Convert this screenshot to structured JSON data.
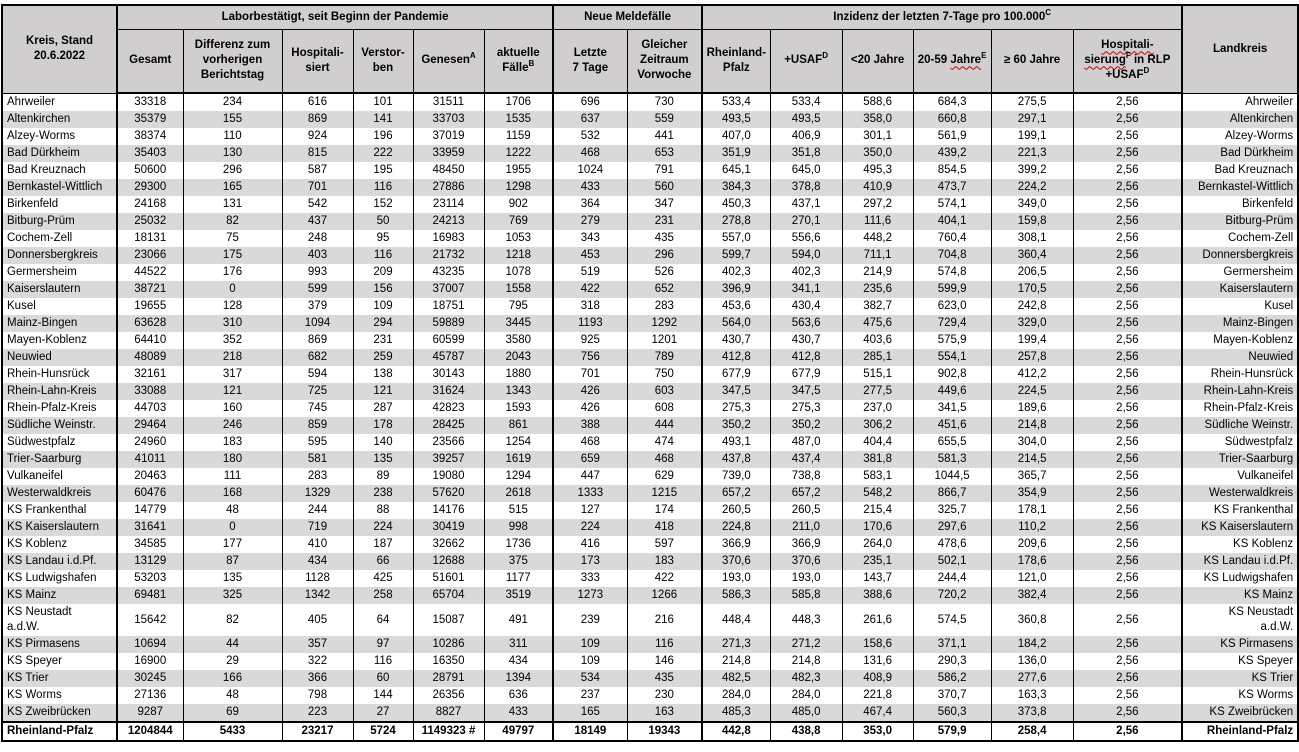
{
  "header": {
    "kreis_stand": [
      "Kreis, Stand",
      "20.6.2022"
    ],
    "groups": {
      "labor": "Laborbestätigt, seit Beginn der Pandemie",
      "meldefaelle": "Neue Meldefälle",
      "inzidenz": {
        "text": "Inzidenz der letzten 7-Tage pro 100.000",
        "sup": "C"
      }
    },
    "cols": {
      "gesamt": "Gesamt",
      "differenz": [
        "Differenz zum",
        "vorherigen",
        "Berichtstag"
      ],
      "hospitalisiert": [
        "Hospitali-",
        "siert"
      ],
      "verstorben": [
        "Verstor-",
        "ben"
      ],
      "genesen": {
        "text": "Genesen",
        "sup": "A"
      },
      "aktuelle_faelle": {
        "lines": [
          "aktuelle",
          "Fälle"
        ],
        "sup": "B"
      },
      "letzte_7_tage": [
        "Letzte",
        "7 Tage"
      ],
      "vorwoche": [
        "Gleicher",
        "Zeitraum",
        "Vorwoche"
      ],
      "rheinland_pfalz": [
        "Rheinland-",
        "Pfalz"
      ],
      "usaf": {
        "text": "+USAF",
        "sup": "D"
      },
      "unter_20": "<20 Jahre",
      "jahre_20_59": {
        "pre": "20-59 ",
        "word": "Jahre",
        "sup": "E"
      },
      "ab_60": "≥ 60 Jahre",
      "hospitalisierung": {
        "line1": "Hospitali-",
        "line2_word": "sierung",
        "line2_sup": "F",
        "line2_rest": " in RLP",
        "line3_text": "+USAF",
        "line3_sup": "D"
      },
      "landkreis": "Landkreis"
    }
  },
  "table": {
    "col_names": [
      "kreis",
      "gesamt",
      "differenz-vortag",
      "hospitalisiert",
      "verstorben",
      "genesen",
      "aktuelle-faelle",
      "letzte-7-tage",
      "vorwoche",
      "inzidenz-rheinland-pfalz",
      "inzidenz-usaf",
      "inzidenz-unter-20",
      "inzidenz-20-59",
      "inzidenz-ab-60",
      "hospitalisierung-rlp-usaf",
      "landkreis"
    ],
    "rows": [
      {
        "kreis": "Ahrweiler",
        "values": [
          "33318",
          "234",
          "616",
          "101",
          "31511",
          "1706",
          "696",
          "730",
          "533,4",
          "533,4",
          "588,6",
          "684,3",
          "275,5",
          "2,56"
        ],
        "landkreis": "Ahrweiler"
      },
      {
        "kreis": "Altenkirchen",
        "values": [
          "35379",
          "155",
          "869",
          "141",
          "33703",
          "1535",
          "637",
          "559",
          "493,5",
          "493,5",
          "358,0",
          "660,8",
          "297,1",
          "2,56"
        ],
        "landkreis": "Altenkirchen"
      },
      {
        "kreis": "Alzey-Worms",
        "values": [
          "38374",
          "110",
          "924",
          "196",
          "37019",
          "1159",
          "532",
          "441",
          "407,0",
          "406,9",
          "301,1",
          "561,9",
          "199,1",
          "2,56"
        ],
        "landkreis": "Alzey-Worms"
      },
      {
        "kreis": "Bad Dürkheim",
        "values": [
          "35403",
          "130",
          "815",
          "222",
          "33959",
          "1222",
          "468",
          "653",
          "351,9",
          "351,8",
          "350,0",
          "439,2",
          "221,3",
          "2,56"
        ],
        "landkreis": "Bad Dürkheim"
      },
      {
        "kreis": "Bad Kreuznach",
        "values": [
          "50600",
          "296",
          "587",
          "195",
          "48450",
          "1955",
          "1024",
          "791",
          "645,1",
          "645,0",
          "495,3",
          "854,5",
          "399,2",
          "2,56"
        ],
        "landkreis": "Bad Kreuznach"
      },
      {
        "kreis": "Bernkastel-Wittlich",
        "values": [
          "29300",
          "165",
          "701",
          "116",
          "27886",
          "1298",
          "433",
          "560",
          "384,3",
          "378,8",
          "410,9",
          "473,7",
          "224,2",
          "2,56"
        ],
        "landkreis": "Bernkastel-Wittlich"
      },
      {
        "kreis": "Birkenfeld",
        "values": [
          "24168",
          "131",
          "542",
          "152",
          "23114",
          "902",
          "364",
          "347",
          "450,3",
          "437,1",
          "297,2",
          "574,1",
          "349,0",
          "2,56"
        ],
        "landkreis": "Birkenfeld"
      },
      {
        "kreis": "Bitburg-Prüm",
        "values": [
          "25032",
          "82",
          "437",
          "50",
          "24213",
          "769",
          "279",
          "231",
          "278,8",
          "270,1",
          "111,6",
          "404,1",
          "159,8",
          "2,56"
        ],
        "landkreis": "Bitburg-Prüm"
      },
      {
        "kreis": "Cochem-Zell",
        "values": [
          "18131",
          "75",
          "248",
          "95",
          "16983",
          "1053",
          "343",
          "435",
          "557,0",
          "556,6",
          "448,2",
          "760,4",
          "308,1",
          "2,56"
        ],
        "landkreis": "Cochem-Zell"
      },
      {
        "kreis": "Donnersbergkreis",
        "values": [
          "23066",
          "175",
          "403",
          "116",
          "21732",
          "1218",
          "453",
          "296",
          "599,7",
          "594,0",
          "711,1",
          "704,8",
          "360,4",
          "2,56"
        ],
        "landkreis": "Donnersbergkreis"
      },
      {
        "kreis": "Germersheim",
        "values": [
          "44522",
          "176",
          "993",
          "209",
          "43235",
          "1078",
          "519",
          "526",
          "402,3",
          "402,3",
          "214,9",
          "574,8",
          "206,5",
          "2,56"
        ],
        "landkreis": "Germersheim"
      },
      {
        "kreis": "Kaiserslautern",
        "values": [
          "38721",
          "0",
          "599",
          "156",
          "37007",
          "1558",
          "422",
          "652",
          "396,9",
          "341,1",
          "235,6",
          "599,9",
          "170,5",
          "2,56"
        ],
        "landkreis": "Kaiserslautern"
      },
      {
        "kreis": "Kusel",
        "values": [
          "19655",
          "128",
          "379",
          "109",
          "18751",
          "795",
          "318",
          "283",
          "453,6",
          "430,4",
          "382,7",
          "623,0",
          "242,8",
          "2,56"
        ],
        "landkreis": "Kusel"
      },
      {
        "kreis": "Mainz-Bingen",
        "values": [
          "63628",
          "310",
          "1094",
          "294",
          "59889",
          "3445",
          "1193",
          "1292",
          "564,0",
          "563,6",
          "475,6",
          "729,4",
          "329,0",
          "2,56"
        ],
        "landkreis": "Mainz-Bingen"
      },
      {
        "kreis": "Mayen-Koblenz",
        "values": [
          "64410",
          "352",
          "869",
          "231",
          "60599",
          "3580",
          "925",
          "1201",
          "430,7",
          "430,7",
          "403,6",
          "575,9",
          "199,4",
          "2,56"
        ],
        "landkreis": "Mayen-Koblenz"
      },
      {
        "kreis": "Neuwied",
        "values": [
          "48089",
          "218",
          "682",
          "259",
          "45787",
          "2043",
          "756",
          "789",
          "412,8",
          "412,8",
          "285,1",
          "554,1",
          "257,8",
          "2,56"
        ],
        "landkreis": "Neuwied"
      },
      {
        "kreis": "Rhein-Hunsrück",
        "values": [
          "32161",
          "317",
          "594",
          "138",
          "30143",
          "1880",
          "701",
          "750",
          "677,9",
          "677,9",
          "515,1",
          "902,8",
          "412,2",
          "2,56"
        ],
        "landkreis": "Rhein-Hunsrück"
      },
      {
        "kreis": "Rhein-Lahn-Kreis",
        "values": [
          "33088",
          "121",
          "725",
          "121",
          "31624",
          "1343",
          "426",
          "603",
          "347,5",
          "347,5",
          "277,5",
          "449,6",
          "224,5",
          "2,56"
        ],
        "landkreis": "Rhein-Lahn-Kreis"
      },
      {
        "kreis": "Rhein-Pfalz-Kreis",
        "values": [
          "44703",
          "160",
          "745",
          "287",
          "42823",
          "1593",
          "426",
          "608",
          "275,3",
          "275,3",
          "237,0",
          "341,5",
          "189,6",
          "2,56"
        ],
        "landkreis": "Rhein-Pfalz-Kreis"
      },
      {
        "kreis": "Südliche Weinstr.",
        "values": [
          "29464",
          "246",
          "859",
          "178",
          "28425",
          "861",
          "388",
          "444",
          "350,2",
          "350,2",
          "306,2",
          "451,6",
          "214,8",
          "2,56"
        ],
        "landkreis": "Südliche Weinstr."
      },
      {
        "kreis": "Südwestpfalz",
        "values": [
          "24960",
          "183",
          "595",
          "140",
          "23566",
          "1254",
          "468",
          "474",
          "493,1",
          "487,0",
          "404,4",
          "655,5",
          "304,0",
          "2,56"
        ],
        "landkreis": "Südwestpfalz"
      },
      {
        "kreis": "Trier-Saarburg",
        "values": [
          "41011",
          "180",
          "581",
          "135",
          "39257",
          "1619",
          "659",
          "468",
          "437,8",
          "437,4",
          "381,8",
          "581,3",
          "214,5",
          "2,56"
        ],
        "landkreis": "Trier-Saarburg"
      },
      {
        "kreis": "Vulkaneifel",
        "values": [
          "20463",
          "111",
          "283",
          "89",
          "19080",
          "1294",
          "447",
          "629",
          "739,0",
          "738,8",
          "583,1",
          "1044,5",
          "365,7",
          "2,56"
        ],
        "landkreis": "Vulkaneifel"
      },
      {
        "kreis": "Westerwaldkreis",
        "values": [
          "60476",
          "168",
          "1329",
          "238",
          "57620",
          "2618",
          "1333",
          "1215",
          "657,2",
          "657,2",
          "548,2",
          "866,7",
          "354,9",
          "2,56"
        ],
        "landkreis": "Westerwaldkreis"
      },
      {
        "kreis": "KS Frankenthal",
        "values": [
          "14779",
          "48",
          "244",
          "88",
          "14176",
          "515",
          "127",
          "174",
          "260,5",
          "260,5",
          "215,4",
          "325,7",
          "178,1",
          "2,56"
        ],
        "landkreis": "KS Frankenthal"
      },
      {
        "kreis": "KS Kaiserslautern",
        "values": [
          "31641",
          "0",
          "719",
          "224",
          "30419",
          "998",
          "224",
          "418",
          "224,8",
          "211,0",
          "170,6",
          "297,6",
          "110,2",
          "2,56"
        ],
        "landkreis": "KS Kaiserslautern"
      },
      {
        "kreis": "KS Koblenz",
        "values": [
          "34585",
          "177",
          "410",
          "187",
          "32662",
          "1736",
          "416",
          "597",
          "366,9",
          "366,9",
          "264,0",
          "478,6",
          "209,6",
          "2,56"
        ],
        "landkreis": "KS Koblenz"
      },
      {
        "kreis": "KS Landau i.d.Pf.",
        "values": [
          "13129",
          "87",
          "434",
          "66",
          "12688",
          "375",
          "173",
          "183",
          "370,6",
          "370,6",
          "235,1",
          "502,1",
          "178,6",
          "2,56"
        ],
        "landkreis": "KS Landau i.d.Pf."
      },
      {
        "kreis": "KS Ludwigshafen",
        "values": [
          "53203",
          "135",
          "1128",
          "425",
          "51601",
          "1177",
          "333",
          "422",
          "193,0",
          "193,0",
          "143,7",
          "244,4",
          "121,0",
          "2,56"
        ],
        "landkreis": "KS Ludwigshafen"
      },
      {
        "kreis": "KS Mainz",
        "values": [
          "69481",
          "325",
          "1342",
          "258",
          "65704",
          "3519",
          "1273",
          "1266",
          "586,3",
          "585,8",
          "388,6",
          "720,2",
          "382,4",
          "2,56"
        ],
        "landkreis": "KS Mainz"
      },
      {
        "kreis": "KS Neustadt\na.d.W.",
        "values": [
          "15642",
          "82",
          "405",
          "64",
          "15087",
          "491",
          "239",
          "216",
          "448,4",
          "448,3",
          "261,6",
          "574,5",
          "360,8",
          "2,56"
        ],
        "landkreis": "KS Neustadt\na.d.W."
      },
      {
        "kreis": "KS Pirmasens",
        "values": [
          "10694",
          "44",
          "357",
          "97",
          "10286",
          "311",
          "109",
          "116",
          "271,3",
          "271,2",
          "158,6",
          "371,1",
          "184,2",
          "2,56"
        ],
        "landkreis": "KS Pirmasens"
      },
      {
        "kreis": "KS Speyer",
        "values": [
          "16900",
          "29",
          "322",
          "116",
          "16350",
          "434",
          "109",
          "146",
          "214,8",
          "214,8",
          "131,6",
          "290,3",
          "136,0",
          "2,56"
        ],
        "landkreis": "KS Speyer"
      },
      {
        "kreis": "KS Trier",
        "values": [
          "30245",
          "166",
          "366",
          "60",
          "28791",
          "1394",
          "534",
          "435",
          "482,5",
          "482,3",
          "408,9",
          "586,2",
          "277,6",
          "2,56"
        ],
        "landkreis": "KS Trier"
      },
      {
        "kreis": "KS Worms",
        "values": [
          "27136",
          "48",
          "798",
          "144",
          "26356",
          "636",
          "237",
          "230",
          "284,0",
          "284,0",
          "221,8",
          "370,7",
          "163,3",
          "2,56"
        ],
        "landkreis": "KS Worms"
      },
      {
        "kreis": "KS Zweibrücken",
        "values": [
          "9287",
          "69",
          "223",
          "27",
          "8827",
          "433",
          "165",
          "163",
          "485,3",
          "485,0",
          "467,4",
          "560,3",
          "373,8",
          "2,56"
        ],
        "landkreis": "KS Zweibrücken"
      }
    ],
    "total_row": {
      "kreis": "Rheinland-Pfalz",
      "values": [
        "1204844",
        "5433",
        "23217",
        "5724",
        "1149323 #",
        "49797",
        "18149",
        "19343",
        "442,8",
        "438,8",
        "353,0",
        "579,9",
        "258,4",
        "2,56"
      ],
      "landkreis": "Rheinland-Pfalz"
    }
  },
  "colors": {
    "header_bg": "#d0cece",
    "stripe_bg": "#d9d9d9",
    "border": "#000000",
    "spellcheck_underline": "#cc0000"
  }
}
